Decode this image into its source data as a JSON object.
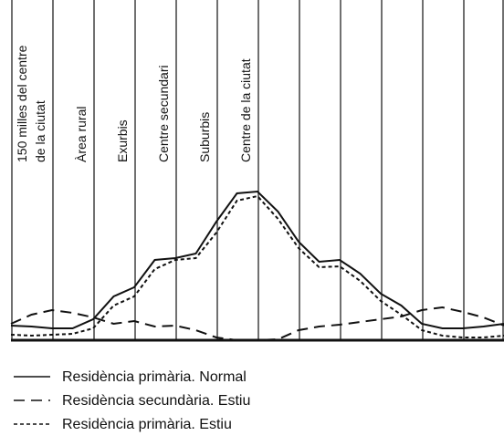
{
  "chart_data": {
    "type": "line",
    "zones": [
      [
        "150 milles del centre",
        "de la ciutat"
      ],
      [
        "Àrea rural"
      ],
      [
        "Exurbis"
      ],
      [
        "Centre secundari"
      ],
      [
        "Suburbis"
      ],
      [
        "Centre de la ciutat"
      ]
    ],
    "x": [
      0,
      1,
      2,
      3,
      4,
      5,
      6,
      7,
      8,
      9,
      10,
      11,
      12,
      13,
      14,
      15,
      16,
      17,
      18,
      19,
      20,
      21,
      22,
      23,
      24
    ],
    "xlim": [
      0,
      24
    ],
    "ylim": [
      0,
      373
    ],
    "series": [
      {
        "name": "Residència primària. Normal",
        "color": "#111111",
        "dash": "solid",
        "values": [
          16,
          15,
          13,
          13,
          23,
          48,
          58,
          88,
          90,
          95,
          130,
          161,
          163,
          141,
          108,
          86,
          88,
          73,
          51,
          38,
          18,
          13,
          13,
          15,
          18
        ]
      },
      {
        "name": "Residència secundària. Estiu",
        "color": "#111111",
        "dash": "dashed",
        "values": [
          18,
          28,
          33,
          30,
          25,
          18,
          21,
          15,
          16,
          11,
          3,
          0,
          0,
          1,
          11,
          15,
          17,
          20,
          23,
          26,
          33,
          36,
          31,
          25,
          16
        ]
      },
      {
        "name": "Residència primària. Estiu",
        "color": "#111111",
        "dash": "dotted",
        "values": [
          6,
          5,
          6,
          7,
          13,
          38,
          48,
          78,
          88,
          90,
          118,
          153,
          158,
          133,
          101,
          80,
          81,
          65,
          43,
          28,
          11,
          5,
          3,
          3,
          5
        ]
      }
    ]
  }
}
